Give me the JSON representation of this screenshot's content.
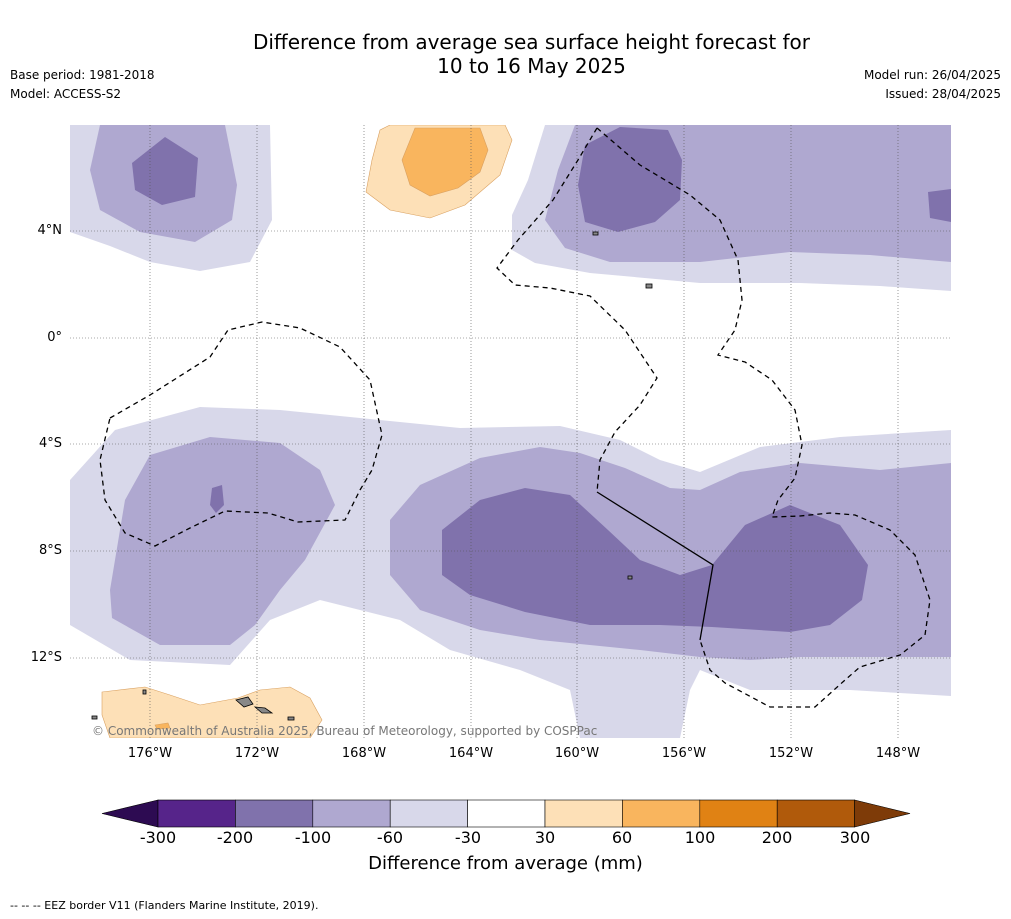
{
  "title_line1": "Difference from average sea surface height forecast for",
  "title_line2": "10 to 16 May 2025",
  "base_period": "Base period: 1981-2018",
  "model": "Model: ACCESS-S2",
  "model_run": "Model run: 26/04/2025",
  "issued": "Issued: 28/04/2025",
  "lat_labels": [
    "4°N",
    "0°",
    "4°S",
    "8°S",
    "12°S"
  ],
  "lon_labels": [
    "176°W",
    "172°W",
    "168°W",
    "164°W",
    "160°W",
    "156°W",
    "152°W",
    "148°W"
  ],
  "copyright": "© Commonwealth of Australia 2025, Bureau of Meteorology, supported by COSPPac",
  "colorbar": {
    "ticks": [
      "-300",
      "-200",
      "-100",
      "-60",
      "-30",
      "30",
      "60",
      "100",
      "200",
      "300"
    ],
    "colors": [
      "#2d0b52",
      "#56248a",
      "#8072ac",
      "#afa8d0",
      "#d8d8ea",
      "#ffffff",
      "#fde0b7",
      "#f9b55e",
      "#e08214",
      "#b05a0b",
      "#7e3b08"
    ],
    "label": "Difference from average (mm)"
  },
  "footnote": "-- -- -- EEZ border V11 (Flanders Marine Institute, 2019).",
  "map_colors": {
    "neg_light": "#d8d8ea",
    "neg_mid": "#afa8d0",
    "neg_dark": "#8072ac",
    "pos_light": "#fde0b7",
    "pos_mid": "#f9b55e"
  }
}
